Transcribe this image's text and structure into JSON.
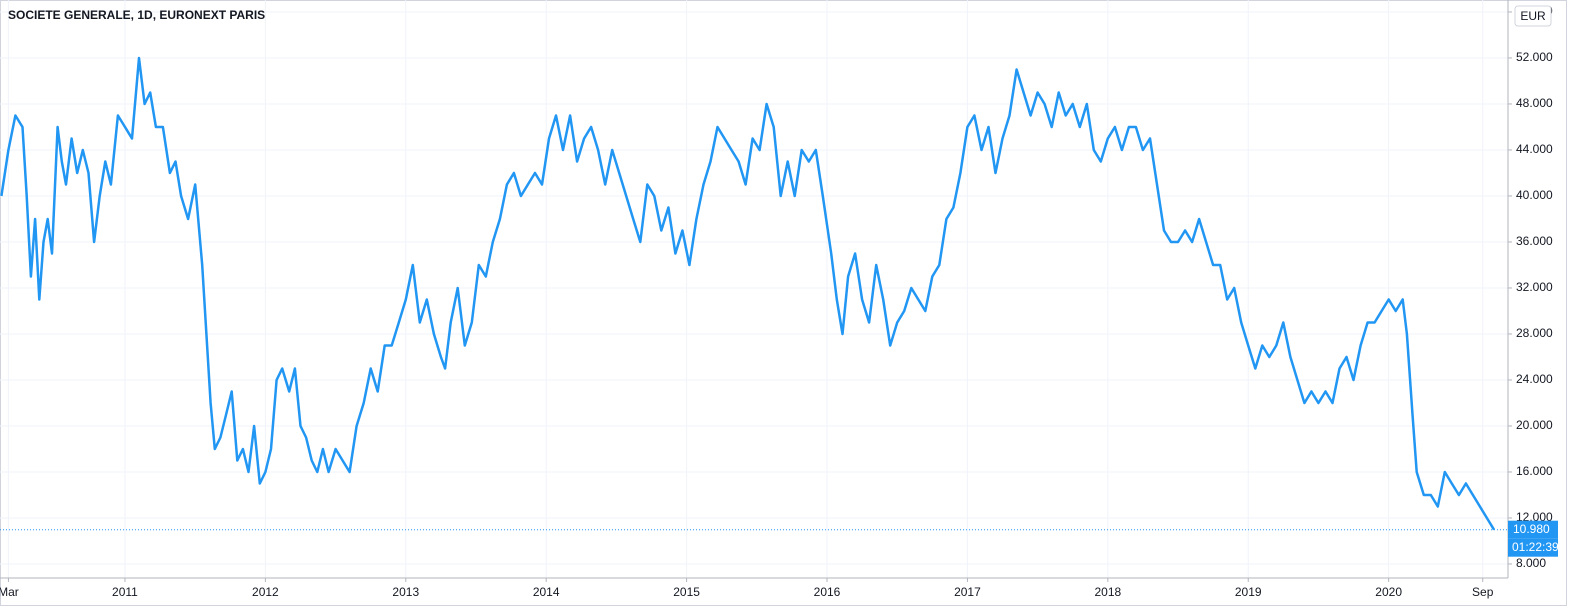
{
  "chart_data": {
    "type": "line",
    "title": "SOCIETE GENERALE, 1D, EURONEXT PARIS",
    "currency": "EUR",
    "countdown": "01:22:39",
    "last_value": {
      "value": 10.98,
      "label": "10.980"
    },
    "x": [
      2010.12,
      2010.17,
      2010.22,
      2010.27,
      2010.3,
      2010.33,
      2010.36,
      2010.39,
      2010.42,
      2010.45,
      2010.48,
      2010.52,
      2010.55,
      2010.58,
      2010.62,
      2010.66,
      2010.7,
      2010.74,
      2010.78,
      2010.82,
      2010.86,
      2010.9,
      2010.95,
      2011.0,
      2011.05,
      2011.1,
      2011.14,
      2011.18,
      2011.22,
      2011.27,
      2011.32,
      2011.36,
      2011.4,
      2011.45,
      2011.5,
      2011.55,
      2011.58,
      2011.61,
      2011.64,
      2011.68,
      2011.72,
      2011.76,
      2011.8,
      2011.84,
      2011.88,
      2011.92,
      2011.96,
      2012.0,
      2012.04,
      2012.08,
      2012.12,
      2012.17,
      2012.21,
      2012.25,
      2012.29,
      2012.33,
      2012.37,
      2012.41,
      2012.45,
      2012.5,
      2012.55,
      2012.6,
      2012.65,
      2012.7,
      2012.75,
      2012.8,
      2012.85,
      2012.9,
      2012.95,
      2013.0,
      2013.05,
      2013.1,
      2013.15,
      2013.2,
      2013.25,
      2013.28,
      2013.32,
      2013.37,
      2013.42,
      2013.47,
      2013.52,
      2013.57,
      2013.62,
      2013.67,
      2013.72,
      2013.77,
      2013.82,
      2013.87,
      2013.92,
      2013.97,
      2014.02,
      2014.07,
      2014.12,
      2014.17,
      2014.22,
      2014.27,
      2014.32,
      2014.37,
      2014.42,
      2014.47,
      2014.52,
      2014.57,
      2014.62,
      2014.67,
      2014.72,
      2014.77,
      2014.82,
      2014.87,
      2014.92,
      2014.97,
      2015.02,
      2015.07,
      2015.12,
      2015.17,
      2015.22,
      2015.27,
      2015.32,
      2015.37,
      2015.42,
      2015.47,
      2015.52,
      2015.57,
      2015.62,
      2015.67,
      2015.72,
      2015.77,
      2015.82,
      2015.87,
      2015.92,
      2015.97,
      2016.03,
      2016.07,
      2016.11,
      2016.15,
      2016.2,
      2016.25,
      2016.3,
      2016.35,
      2016.4,
      2016.45,
      2016.5,
      2016.55,
      2016.6,
      2016.65,
      2016.7,
      2016.75,
      2016.8,
      2016.85,
      2016.9,
      2016.95,
      2017.0,
      2017.05,
      2017.1,
      2017.15,
      2017.2,
      2017.25,
      2017.3,
      2017.35,
      2017.4,
      2017.45,
      2017.5,
      2017.55,
      2017.6,
      2017.65,
      2017.7,
      2017.75,
      2017.8,
      2017.85,
      2017.9,
      2017.95,
      2018.0,
      2018.05,
      2018.1,
      2018.15,
      2018.2,
      2018.25,
      2018.3,
      2018.35,
      2018.4,
      2018.45,
      2018.5,
      2018.55,
      2018.6,
      2018.65,
      2018.7,
      2018.75,
      2018.8,
      2018.85,
      2018.9,
      2018.95,
      2019.0,
      2019.05,
      2019.1,
      2019.15,
      2019.2,
      2019.25,
      2019.3,
      2019.35,
      2019.4,
      2019.45,
      2019.5,
      2019.55,
      2019.6,
      2019.65,
      2019.7,
      2019.75,
      2019.8,
      2019.85,
      2019.9,
      2019.95,
      2020.0,
      2020.05,
      2020.1,
      2020.13,
      2020.17,
      2020.2,
      2020.25,
      2020.3,
      2020.35,
      2020.4,
      2020.45,
      2020.5,
      2020.55,
      2020.6,
      2020.65,
      2020.7,
      2020.75
    ],
    "series": [
      {
        "color": "#2196f3",
        "values": [
          40,
          44,
          47,
          46,
          40,
          33,
          38,
          31,
          36,
          38,
          35,
          46,
          43,
          41,
          45,
          42,
          44,
          42,
          36,
          40,
          43,
          41,
          47,
          46,
          45,
          52,
          48,
          49,
          46,
          46,
          42,
          43,
          40,
          38,
          41,
          34,
          28,
          22,
          18,
          19,
          21,
          23,
          17,
          18,
          16,
          20,
          15,
          16,
          18,
          24,
          25,
          23,
          25,
          20,
          19,
          17,
          16,
          18,
          16,
          18,
          17,
          16,
          20,
          22,
          25,
          23,
          27,
          27,
          29,
          31,
          34,
          29,
          31,
          28,
          26,
          25,
          29,
          32,
          27,
          29,
          34,
          33,
          36,
          38,
          41,
          42,
          40,
          41,
          42,
          41,
          45,
          47,
          44,
          47,
          43,
          45,
          46,
          44,
          41,
          44,
          42,
          40,
          38,
          36,
          41,
          40,
          37,
          39,
          35,
          37,
          34,
          38,
          41,
          43,
          46,
          45,
          44,
          43,
          41,
          45,
          44,
          48,
          46,
          40,
          43,
          40,
          44,
          43,
          44,
          40,
          35,
          31,
          28,
          33,
          35,
          31,
          29,
          34,
          31,
          27,
          29,
          30,
          32,
          31,
          30,
          33,
          34,
          38,
          39,
          42,
          46,
          47,
          44,
          46,
          42,
          45,
          47,
          51,
          49,
          47,
          49,
          48,
          46,
          49,
          47,
          48,
          46,
          48,
          44,
          43,
          45,
          46,
          44,
          46,
          46,
          44,
          45,
          41,
          37,
          36,
          36,
          37,
          36,
          38,
          36,
          34,
          34,
          31,
          32,
          29,
          27,
          25,
          27,
          26,
          27,
          29,
          26,
          24,
          22,
          23,
          22,
          23,
          22,
          25,
          26,
          24,
          27,
          29,
          29,
          30,
          31,
          30,
          31,
          28,
          21,
          16,
          14,
          14,
          13,
          16,
          15,
          14,
          15,
          14,
          13,
          12,
          10.98
        ]
      }
    ],
    "xlim": [
      2010.11,
      2020.85
    ],
    "xticks": [
      {
        "value": 2010.17,
        "label": "Mar"
      },
      {
        "value": 2011,
        "label": "2011"
      },
      {
        "value": 2012,
        "label": "2012"
      },
      {
        "value": 2013,
        "label": "2013"
      },
      {
        "value": 2014,
        "label": "2014"
      },
      {
        "value": 2015,
        "label": "2015"
      },
      {
        "value": 2016,
        "label": "2016"
      },
      {
        "value": 2017,
        "label": "2017"
      },
      {
        "value": 2018,
        "label": "2018"
      },
      {
        "value": 2019,
        "label": "2019"
      },
      {
        "value": 2020,
        "label": "2020"
      },
      {
        "value": 2020.67,
        "label": "Sep"
      }
    ],
    "ylim": [
      6.78,
      57.04
    ],
    "yticks": [
      {
        "value": 8,
        "label": "8.000"
      },
      {
        "value": 12,
        "label": "12.000"
      },
      {
        "value": 16,
        "label": "16.000"
      },
      {
        "value": 20,
        "label": "20.000"
      },
      {
        "value": 24,
        "label": "24.000"
      },
      {
        "value": 28,
        "label": "28.000"
      },
      {
        "value": 32,
        "label": "32.000"
      },
      {
        "value": 36,
        "label": "36.000"
      },
      {
        "value": 40,
        "label": "40.000"
      },
      {
        "value": 44,
        "label": "44.000"
      },
      {
        "value": 48,
        "label": "48.000"
      },
      {
        "value": 52,
        "label": "52.000"
      },
      {
        "value": 56,
        "label": "56.000"
      }
    ],
    "grid": true
  }
}
